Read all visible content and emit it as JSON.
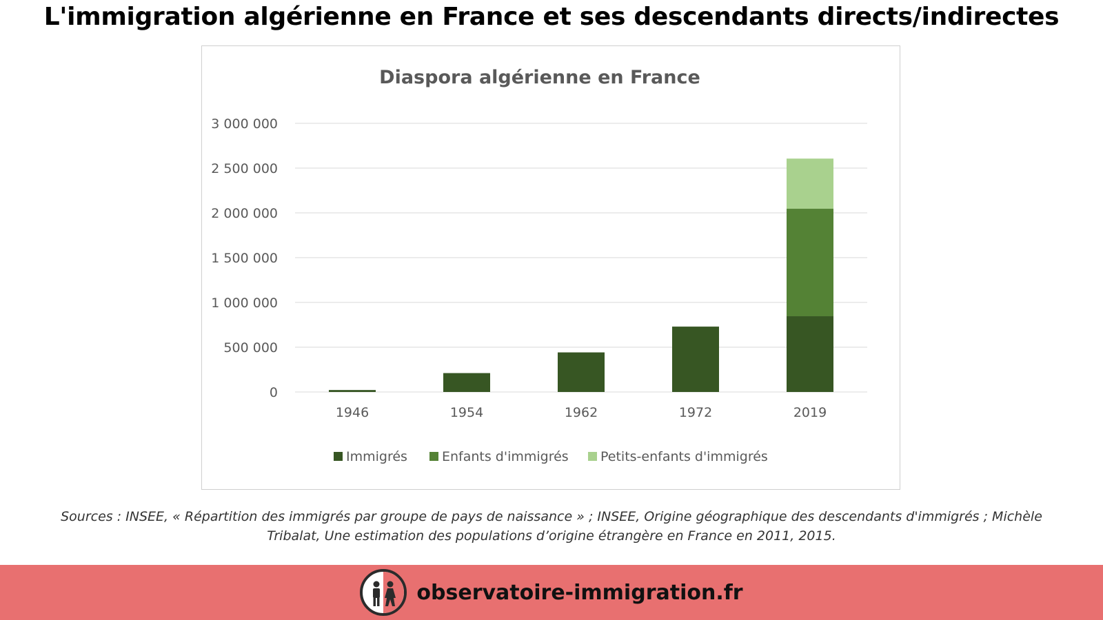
{
  "headline": "L'immigration algérienne en France et ses descendants directs/indirectes",
  "chart_data": {
    "type": "bar",
    "stacked": true,
    "title": "Diaspora algérienne en France",
    "categories": [
      "1946",
      "1954",
      "1962",
      "1972",
      "2019"
    ],
    "series": [
      {
        "name": "Immigrés",
        "color": "#375623",
        "values": [
          22000,
          211000,
          442000,
          730000,
          846000
        ]
      },
      {
        "name": "Enfants d'immigrés",
        "color": "#548235",
        "values": [
          0,
          0,
          0,
          0,
          1200000
        ]
      },
      {
        "name": "Petits-enfants d'immigrés",
        "color": "#a9d18e",
        "values": [
          0,
          0,
          0,
          0,
          560000
        ]
      }
    ],
    "ylim": [
      0,
      3000000
    ],
    "yticks": [
      0,
      500000,
      1000000,
      1500000,
      2000000,
      2500000,
      3000000
    ],
    "ytick_labels": [
      "0",
      "500 000",
      "1 000 000",
      "1 500 000",
      "2 000 000",
      "2 500 000",
      "3 000 000"
    ],
    "xlabel": "",
    "ylabel": "",
    "grid": true,
    "legend": "bottom"
  },
  "sources": "Sources : INSEE, « Répartition des immigrés par groupe de pays de naissance » ; INSEE, Origine géographique des descendants d'immigrés ; Michèle Tribalat, Une estimation des populations d’origine étrangère en France en 2011, 2015.",
  "footer": {
    "background": "#e87070",
    "site_name": "observatoire-immigration.fr",
    "logo_icon": "two-people-logo-icon"
  }
}
